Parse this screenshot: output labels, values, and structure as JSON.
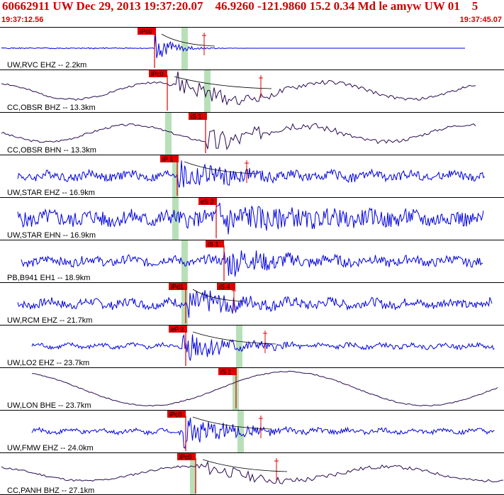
{
  "header": {
    "title": "60662911 UW Dec 29, 2013 19:37:20.07    46.9260 -121.9860 15.2 0.34 Md le amyw UW 01    5",
    "start_time": "19:37:12.56",
    "end_time": "19:37:45.07"
  },
  "colors": {
    "header_text": "#d00000",
    "trace_blue": "#0000e0",
    "trace_dark": "#2a0a50",
    "pick": "#e00000",
    "window": "#b8e0b8"
  },
  "traces": [
    {
      "label": "UW,RVC EHZ -- 2.2km",
      "color": "blue",
      "style": "spike",
      "seed": 1,
      "picks": [
        {
          "label": "iPc0"
        }
      ]
    },
    {
      "label": "CC,OBSR BHZ -- 13.3km",
      "color": "dark",
      "style": "long",
      "seed": 2,
      "picks": [
        {
          "label": "iPc0"
        }
      ]
    },
    {
      "label": "CC,OBSR BHN -- 13.3km",
      "color": "dark",
      "style": "long",
      "seed": 3,
      "picks": [
        {
          "label": "iS 1"
        }
      ]
    },
    {
      "label": "UW,STAR EHZ -- 16.9km",
      "color": "blue",
      "style": "noisy",
      "seed": 4,
      "picks": [
        {
          "label": "iP 1"
        }
      ]
    },
    {
      "label": "UW,STAR EHN -- 16.9km",
      "color": "blue",
      "style": "noisy2",
      "seed": 5,
      "picks": [
        {
          "label": "eS 2"
        }
      ]
    },
    {
      "label": "PB,B941 EH1 -- 18.9km",
      "color": "blue",
      "style": "noisy",
      "seed": 6,
      "picks": [
        {
          "label": "iS 1"
        }
      ]
    },
    {
      "label": "UW,RCM EHZ -- 21.7km",
      "color": "blue",
      "style": "noisy",
      "seed": 7,
      "picks": [
        {
          "label": "iPd1"
        },
        {
          "label": "iS 4"
        }
      ]
    },
    {
      "label": "UW,LO2 EHZ -- 23.7km",
      "color": "blue",
      "style": "event",
      "seed": 8,
      "picks": [
        {
          "label": "eP 2"
        }
      ]
    },
    {
      "label": "UW,LON BHE -- 23.7km",
      "color": "dark",
      "style": "verylong",
      "seed": 9,
      "picks": [
        {
          "label": "iS 1"
        }
      ]
    },
    {
      "label": "UW,FMW EHZ -- 24.0km",
      "color": "blue",
      "style": "event",
      "seed": 10,
      "picks": [
        {
          "label": "iPc0"
        }
      ]
    },
    {
      "label": "CC,PANH BHZ -- 27.1km",
      "color": "dark",
      "style": "long2",
      "seed": 11,
      "picks": [
        {
          "label": "iPc0"
        }
      ]
    }
  ]
}
